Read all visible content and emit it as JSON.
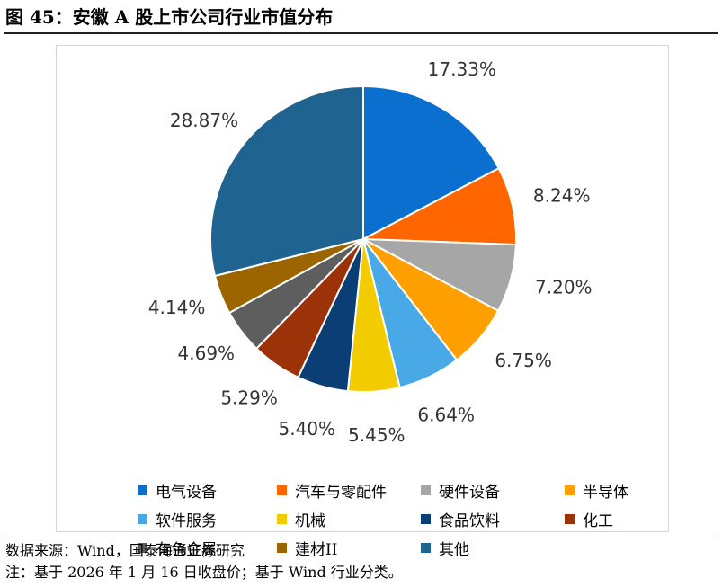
{
  "figure_title": "图 45：安徽 A 股上市公司行业市值分布",
  "source": "数据来源：Wind，国泰海通证券研究",
  "note": "注：基于 2026 年 1 月 16 日收盘价；基于 Wind 行业分类。",
  "chart_data": {
    "type": "pie",
    "title": "",
    "legend_position": "bottom",
    "start_direction": "12 o'clock, clockwise",
    "slices": [
      {
        "name": "电气设备",
        "value": 17.33,
        "label": "17.33%",
        "color": "#0A6FCE"
      },
      {
        "name": "汽车与零配件",
        "value": 8.24,
        "label": "8.24%",
        "color": "#FF6600"
      },
      {
        "name": "硬件设备",
        "value": 7.2,
        "label": "7.20%",
        "color": "#A6A6A6"
      },
      {
        "name": "半导体",
        "value": 6.75,
        "label": "6.75%",
        "color": "#FFA000"
      },
      {
        "name": "软件服务",
        "value": 6.64,
        "label": "6.64%",
        "color": "#48A9E6"
      },
      {
        "name": "机械",
        "value": 5.45,
        "label": "5.45%",
        "color": "#F2CC00"
      },
      {
        "name": "食品饮料",
        "value": 5.4,
        "label": "5.40%",
        "color": "#0B3E74"
      },
      {
        "name": "化工",
        "value": 5.29,
        "label": "5.29%",
        "color": "#9C3208"
      },
      {
        "name": "有色金属",
        "value": 4.69,
        "label": "4.69%",
        "color": "#5E5E5E"
      },
      {
        "name": "建材II",
        "value": 4.14,
        "label": "4.14%",
        "color": "#9C6500"
      },
      {
        "name": "其他",
        "value": 28.87,
        "label": "28.87%",
        "color": "#1F6391"
      }
    ]
  }
}
